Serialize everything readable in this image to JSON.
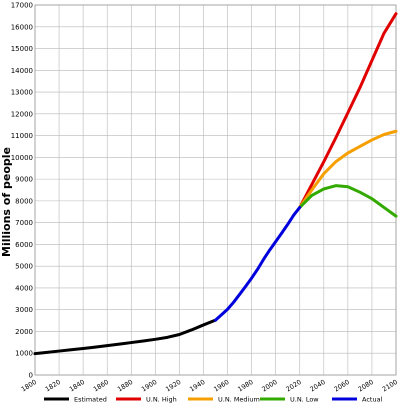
{
  "chart_data": {
    "type": "line",
    "title": "",
    "xlabel": "",
    "ylabel": "Millions of people",
    "xlim": [
      1800,
      2100
    ],
    "ylim": [
      0,
      17000
    ],
    "x_ticks": [
      1800,
      1820,
      1840,
      1860,
      1880,
      1900,
      1920,
      1940,
      1960,
      1980,
      2000,
      2020,
      2040,
      2060,
      2080,
      2100
    ],
    "y_ticks": [
      0,
      1000,
      2000,
      3000,
      4000,
      5000,
      6000,
      7000,
      8000,
      9000,
      10000,
      11000,
      12000,
      13000,
      14000,
      15000,
      16000,
      17000
    ],
    "grid": true,
    "legend_position": "bottom",
    "series": [
      {
        "name": "Estimated",
        "color": "#000000",
        "points": [
          [
            1800,
            980
          ],
          [
            1810,
            1040
          ],
          [
            1820,
            1100
          ],
          [
            1830,
            1160
          ],
          [
            1840,
            1220
          ],
          [
            1850,
            1280
          ],
          [
            1860,
            1350
          ],
          [
            1870,
            1420
          ],
          [
            1880,
            1490
          ],
          [
            1890,
            1560
          ],
          [
            1900,
            1640
          ],
          [
            1910,
            1730
          ],
          [
            1920,
            1860
          ],
          [
            1930,
            2070
          ],
          [
            1940,
            2300
          ],
          [
            1950,
            2520
          ]
        ]
      },
      {
        "name": "U.N. High",
        "color": "#e00000",
        "points": [
          [
            2020,
            7700
          ],
          [
            2030,
            8750
          ],
          [
            2040,
            9800
          ],
          [
            2050,
            10900
          ],
          [
            2060,
            12050
          ],
          [
            2070,
            13200
          ],
          [
            2080,
            14450
          ],
          [
            2090,
            15700
          ],
          [
            2100,
            16600
          ]
        ]
      },
      {
        "name": "U.N. Medium",
        "color": "#f5a000",
        "points": [
          [
            2020,
            7700
          ],
          [
            2030,
            8500
          ],
          [
            2040,
            9250
          ],
          [
            2050,
            9800
          ],
          [
            2060,
            10200
          ],
          [
            2070,
            10500
          ],
          [
            2080,
            10800
          ],
          [
            2090,
            11050
          ],
          [
            2100,
            11200
          ]
        ]
      },
      {
        "name": "U.N. Low",
        "color": "#33aa00",
        "points": [
          [
            2020,
            7700
          ],
          [
            2030,
            8250
          ],
          [
            2040,
            8550
          ],
          [
            2050,
            8700
          ],
          [
            2060,
            8650
          ],
          [
            2070,
            8400
          ],
          [
            2080,
            8100
          ],
          [
            2090,
            7700
          ],
          [
            2100,
            7300
          ]
        ]
      },
      {
        "name": "Actual",
        "color": "#0000dd",
        "points": [
          [
            1950,
            2520
          ],
          [
            1955,
            2770
          ],
          [
            1960,
            3020
          ],
          [
            1965,
            3340
          ],
          [
            1970,
            3700
          ],
          [
            1975,
            4070
          ],
          [
            1980,
            4450
          ],
          [
            1985,
            4860
          ],
          [
            1990,
            5320
          ],
          [
            1995,
            5740
          ],
          [
            2000,
            6130
          ],
          [
            2005,
            6520
          ],
          [
            2010,
            6920
          ],
          [
            2015,
            7350
          ],
          [
            2020,
            7700
          ]
        ]
      }
    ]
  }
}
